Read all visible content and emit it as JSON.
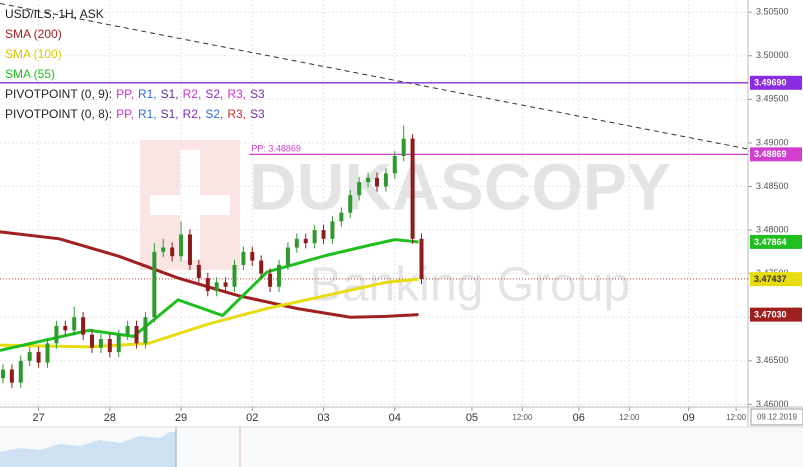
{
  "chart_data": {
    "type": "candlestick",
    "title": "USD/ILS, 1H, ASK",
    "watermark": [
      "DUKASCOPY",
      "Banking Group"
    ],
    "x": [
      1,
      4,
      7,
      10,
      13,
      16,
      19,
      22,
      25,
      28,
      31,
      34,
      37,
      40,
      43,
      46,
      49,
      52,
      55,
      58,
      61,
      64,
      67,
      70,
      73,
      76,
      79,
      82,
      85,
      88,
      91,
      94,
      97,
      100,
      103,
      106,
      109,
      112,
      115,
      118,
      121,
      124,
      127,
      130,
      133,
      136,
      139,
      142
    ],
    "open": [
      3.463,
      3.464,
      3.4625,
      3.465,
      3.466,
      3.4648,
      3.467,
      3.469,
      3.4685,
      3.47,
      3.468,
      3.4665,
      3.4675,
      3.466,
      3.468,
      3.469,
      3.467,
      3.47,
      3.4775,
      3.478,
      3.477,
      3.4795,
      3.476,
      3.4745,
      3.473,
      3.474,
      3.4735,
      3.476,
      3.4775,
      3.4765,
      3.475,
      3.4735,
      3.476,
      3.478,
      3.479,
      3.4785,
      3.48,
      3.479,
      3.481,
      3.482,
      3.484,
      3.4855,
      3.486,
      3.485,
      3.4865,
      3.4885,
      3.4905,
      3.479
    ],
    "high": [
      3.4646,
      3.4646,
      3.4656,
      3.4666,
      3.4666,
      3.4676,
      3.4696,
      3.4696,
      3.4712,
      3.4706,
      3.4686,
      3.4681,
      3.4681,
      3.4686,
      3.4696,
      3.4696,
      3.4706,
      3.4785,
      3.479,
      3.4786,
      3.481,
      3.4801,
      3.4766,
      3.4751,
      3.4746,
      3.4746,
      3.4766,
      3.4781,
      3.4781,
      3.4771,
      3.4756,
      3.4766,
      3.4786,
      3.4796,
      3.4796,
      3.4806,
      3.4806,
      3.4816,
      3.4826,
      3.4846,
      3.4861,
      3.4866,
      3.4866,
      3.4871,
      3.4891,
      3.492,
      3.491,
      3.4796
    ],
    "low": [
      3.4624,
      3.4619,
      3.4619,
      3.4644,
      3.4642,
      3.4642,
      3.4664,
      3.4679,
      3.4679,
      3.4674,
      3.4659,
      3.4659,
      3.4654,
      3.4654,
      3.4674,
      3.4664,
      3.4664,
      3.4694,
      3.4769,
      3.4764,
      3.4764,
      3.4754,
      3.4739,
      3.4724,
      3.4724,
      3.4729,
      3.4729,
      3.4754,
      3.4759,
      3.4744,
      3.4729,
      3.4729,
      3.4754,
      3.4774,
      3.4779,
      3.4779,
      3.4784,
      3.4784,
      3.4804,
      3.4814,
      3.4834,
      3.4849,
      3.4844,
      3.4844,
      3.4859,
      3.4879,
      3.4784,
      3.4738
    ],
    "close": [
      3.464,
      3.4625,
      3.465,
      3.466,
      3.4648,
      3.467,
      3.469,
      3.4685,
      3.47,
      3.468,
      3.4665,
      3.4675,
      3.466,
      3.468,
      3.469,
      3.467,
      3.47,
      3.4775,
      3.478,
      3.477,
      3.4795,
      3.476,
      3.4745,
      3.473,
      3.474,
      3.4735,
      3.476,
      3.4775,
      3.4765,
      3.475,
      3.4735,
      3.476,
      3.478,
      3.479,
      3.4785,
      3.48,
      3.479,
      3.481,
      3.482,
      3.484,
      3.4855,
      3.486,
      3.485,
      3.4865,
      3.4885,
      3.4905,
      3.479,
      3.4744
    ],
    "up_color": "#2e9a2e",
    "down_color": "#8e1b1b",
    "series": [
      {
        "name": "SMA (200)",
        "color": "#a01f1f",
        "x": [
          0,
          20,
          40,
          60,
          80,
          100,
          118,
          130,
          141
        ],
        "values": [
          3.4798,
          3.479,
          3.477,
          3.4745,
          3.4725,
          3.471,
          3.47,
          3.4701,
          3.4703
        ],
        "end_label": "3.47030"
      },
      {
        "name": "SMA (100)",
        "color": "#e8dc10",
        "x": [
          0,
          30,
          50,
          70,
          90,
          110,
          130,
          141
        ],
        "values": [
          3.4668,
          3.4666,
          3.467,
          3.4692,
          3.471,
          3.4725,
          3.474,
          3.47437
        ],
        "end_label": "3.47437"
      },
      {
        "name": "SMA (55)",
        "color": "#1fbf1f",
        "x": [
          0,
          30,
          45,
          60,
          75,
          90,
          110,
          125,
          133,
          141
        ],
        "values": [
          3.4662,
          3.4685,
          3.4678,
          3.472,
          3.4702,
          3.4752,
          3.4771,
          3.4783,
          3.4789,
          3.47864
        ],
        "end_label": "3.47864"
      }
    ],
    "pivots": [
      {
        "name": "PIVOTPOINT (0, 9):",
        "items": [
          {
            "label": "PP,",
            "color": "#cc33cc"
          },
          {
            "label": "R1,",
            "color": "#2f6fd6"
          },
          {
            "label": "S1,",
            "color": "#5a2fa0"
          },
          {
            "label": "R2,",
            "color": "#cc33cc"
          },
          {
            "label": "S2,",
            "color": "#8a2fc0"
          },
          {
            "label": "R3,",
            "color": "#cc33cc"
          },
          {
            "label": "S3",
            "color": "#7a2fb0"
          }
        ]
      },
      {
        "name": "PIVOTPOINT (0, 8):",
        "items": [
          {
            "label": "PP,",
            "color": "#cc33cc"
          },
          {
            "label": "R1,",
            "color": "#2f6fd6"
          },
          {
            "label": "S1,",
            "color": "#5a2fa0"
          },
          {
            "label": "R2,",
            "color": "#7a2fb0"
          },
          {
            "label": "S2,",
            "color": "#2f6fd6"
          },
          {
            "label": "R3,",
            "color": "#cc3333"
          },
          {
            "label": "S3",
            "color": "#7a2fb0"
          }
        ]
      }
    ],
    "levels": [
      {
        "value": 3.4969,
        "label": "3.49690",
        "color": "#8b2be2",
        "x_start": 0
      },
      {
        "value": 3.48869,
        "label": "3.48869",
        "color": "#d13fd1",
        "x_start": 84,
        "text": "PP: 3.48869"
      }
    ],
    "trendline": {
      "x": [
        0,
        252
      ],
      "values": [
        3.506,
        3.4893
      ]
    },
    "last_price": 3.4744,
    "last_price_color": "#c0392b",
    "xlim": [
      0,
      252
    ],
    "ylim": [
      3.4597,
      3.5064
    ],
    "yticks": [
      {
        "value": 3.46,
        "label": "3.46000"
      },
      {
        "value": 3.465,
        "label": "3.46500"
      },
      {
        "value": 3.47,
        "label": "3.47000"
      },
      {
        "value": 3.475,
        "label": "3.47500"
      },
      {
        "value": 3.48,
        "label": "3.48000"
      },
      {
        "value": 3.485,
        "label": "3.48500"
      },
      {
        "value": 3.49,
        "label": "3.49000"
      },
      {
        "value": 3.495,
        "label": "3.49500"
      },
      {
        "value": 3.5,
        "label": "3.50000"
      },
      {
        "value": 3.505,
        "label": "3.50500"
      }
    ],
    "xticks": [
      {
        "value": 13,
        "label": "27"
      },
      {
        "value": 37,
        "label": "28"
      },
      {
        "value": 61,
        "label": "29"
      },
      {
        "value": 85,
        "label": "02"
      },
      {
        "value": 109,
        "label": "03"
      },
      {
        "value": 133,
        "label": "04"
      },
      {
        "value": 159,
        "label": "05"
      },
      {
        "value": 176,
        "label": "12:00"
      },
      {
        "value": 195,
        "label": "06"
      },
      {
        "value": 212,
        "label": "12:00"
      },
      {
        "value": 232,
        "label": "09"
      },
      {
        "value": 248,
        "label": "12:00"
      }
    ],
    "date_label": "09.12.2019",
    "grid": true
  }
}
